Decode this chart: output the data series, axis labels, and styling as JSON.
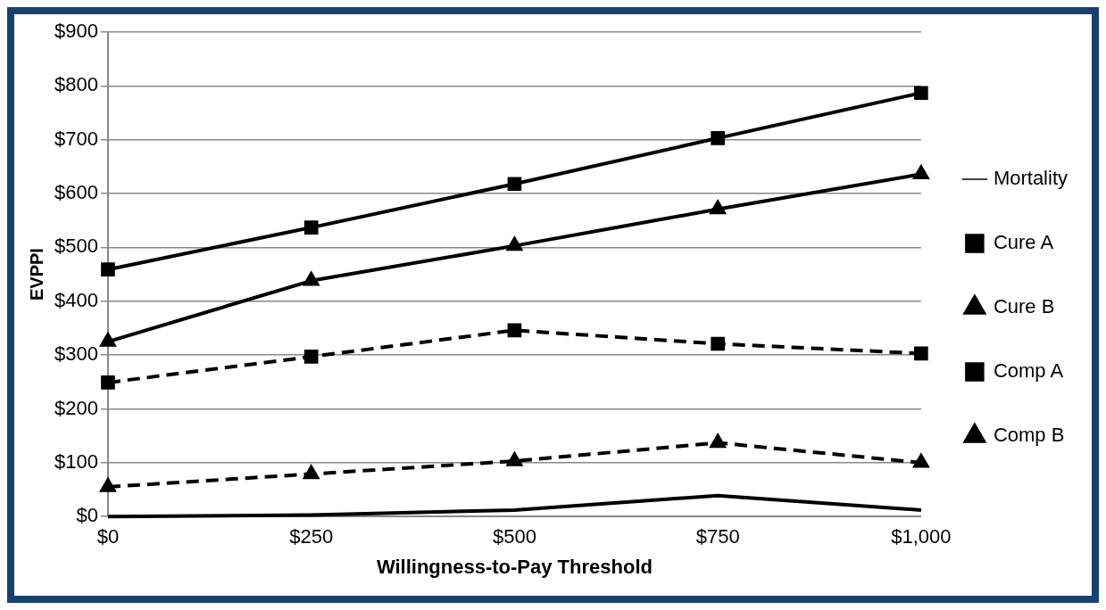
{
  "chart_data": {
    "type": "line",
    "xlabel": "Willingness-to-Pay Threshold",
    "ylabel": "EVPPI",
    "x": [
      0,
      250,
      500,
      750,
      1000
    ],
    "xlim": [
      0,
      1000
    ],
    "xticks": [
      {
        "value": 0,
        "label": "$0"
      },
      {
        "value": 250,
        "label": "$250"
      },
      {
        "value": 500,
        "label": "$500"
      },
      {
        "value": 750,
        "label": "$750"
      },
      {
        "value": 1000,
        "label": "$1,000"
      }
    ],
    "ylim": [
      0,
      900
    ],
    "yticks": [
      {
        "value": 0,
        "label": "$0"
      },
      {
        "value": 100,
        "label": "$100"
      },
      {
        "value": 200,
        "label": "$200"
      },
      {
        "value": 300,
        "label": "$300"
      },
      {
        "value": 400,
        "label": "$400"
      },
      {
        "value": 500,
        "label": "$500"
      },
      {
        "value": 600,
        "label": "$600"
      },
      {
        "value": 700,
        "label": "$700"
      },
      {
        "value": 800,
        "label": "$800"
      },
      {
        "value": 900,
        "label": "$900"
      }
    ],
    "grid": "y",
    "legend": "right",
    "series": [
      {
        "name": "Mortality",
        "color": "#000000",
        "marker": "none",
        "line_style": "solid",
        "values": [
          0,
          3,
          12,
          39,
          12
        ]
      },
      {
        "name": "Cure A",
        "color": "#000000",
        "marker": "square",
        "line_style": "solid",
        "values": [
          459,
          537,
          618,
          703,
          787
        ]
      },
      {
        "name": "Cure B",
        "color": "#000000",
        "marker": "triangle",
        "line_style": "solid",
        "values": [
          325,
          438,
          503,
          571,
          636
        ]
      },
      {
        "name": "Comp A",
        "color": "#000000",
        "marker": "square",
        "line_style": "dashed",
        "values": [
          249,
          297,
          346,
          321,
          303
        ]
      },
      {
        "name": "Comp B",
        "color": "#000000",
        "marker": "triangle",
        "line_style": "dashed",
        "values": [
          55,
          79,
          103,
          137,
          100
        ]
      }
    ]
  }
}
